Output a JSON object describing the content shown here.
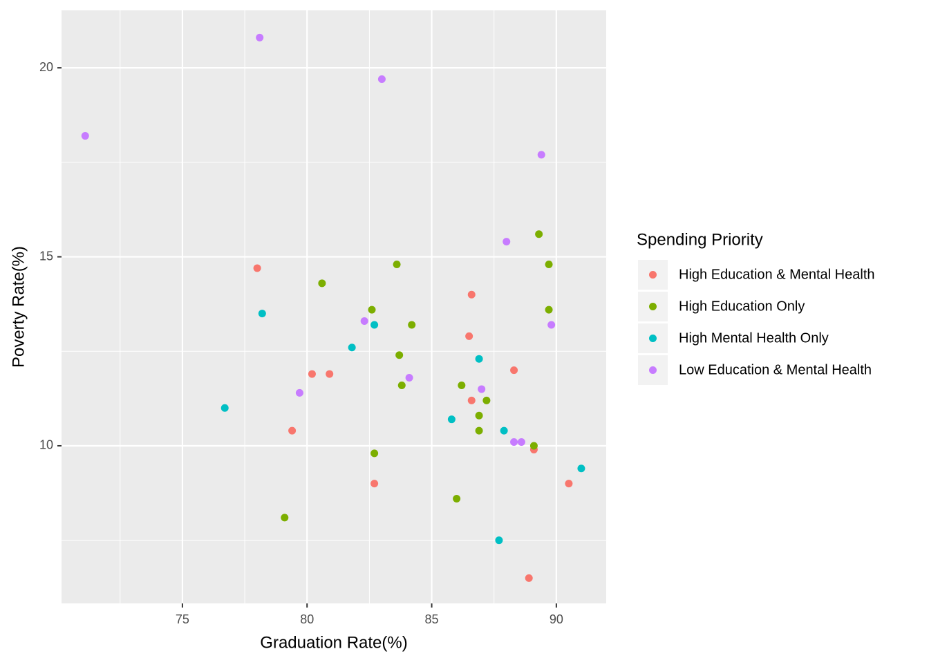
{
  "chart_data": {
    "type": "scatter",
    "x_label": "Graduation Rate(%)",
    "y_label": "Poverty Rate(%)",
    "legend_title": "Spending Priority",
    "legend_position": "right",
    "grid": true,
    "xlim": [
      70.15,
      92.0
    ],
    "ylim": [
      5.83,
      21.52
    ],
    "xticks": [
      75,
      80,
      85,
      90
    ],
    "yticks": [
      10,
      15,
      20
    ],
    "x_minor_ticks": [
      72.5,
      77.5,
      82.5,
      87.5
    ],
    "y_minor_ticks": [
      7.5,
      12.5,
      17.5
    ],
    "series": [
      {
        "name": "High Education & Mental Health",
        "color": "#F8766D",
        "x": [
          78.0,
          86.6,
          86.5,
          80.2,
          80.9,
          88.3,
          86.6,
          79.4,
          89.1,
          82.7,
          90.5,
          88.9
        ],
        "values": [
          14.7,
          14.0,
          12.9,
          11.9,
          11.9,
          12.0,
          11.2,
          10.4,
          9.9,
          9.0,
          9.0,
          6.5
        ]
      },
      {
        "name": "High Education Only",
        "color": "#7CAE00",
        "x": [
          89.3,
          83.6,
          89.7,
          80.6,
          82.6,
          89.7,
          84.2,
          83.7,
          83.8,
          86.2,
          87.2,
          86.9,
          86.9,
          89.1,
          82.7,
          86.0,
          79.1
        ],
        "values": [
          15.6,
          14.8,
          14.8,
          14.3,
          13.6,
          13.6,
          13.2,
          12.4,
          11.6,
          11.6,
          11.2,
          10.8,
          10.4,
          10.0,
          9.8,
          8.6,
          8.1
        ]
      },
      {
        "name": "High Mental Health Only",
        "color": "#00BFC4",
        "x": [
          78.2,
          82.7,
          81.8,
          86.9,
          76.7,
          85.8,
          87.9,
          91.0,
          87.7
        ],
        "values": [
          13.5,
          13.2,
          12.6,
          12.3,
          11.0,
          10.7,
          10.4,
          9.4,
          7.5
        ]
      },
      {
        "name": "Low Education & Mental Health",
        "color": "#C77CFF",
        "x": [
          78.1,
          83.0,
          71.1,
          89.4,
          88.0,
          82.3,
          89.8,
          84.1,
          87.0,
          79.7,
          88.3,
          88.6
        ],
        "values": [
          20.8,
          19.7,
          18.2,
          17.7,
          15.4,
          13.3,
          13.2,
          11.8,
          11.5,
          11.4,
          10.1,
          10.1
        ]
      }
    ]
  }
}
